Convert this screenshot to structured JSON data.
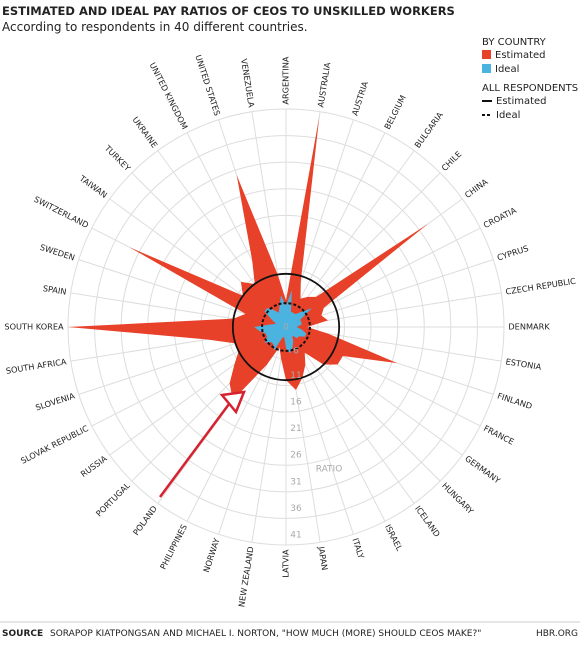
{
  "chart_data": {
    "type": "radar",
    "title": "ESTIMATED AND IDEAL PAY RATIOS OF CEOS TO UNSKILLED WORKERS",
    "subtitle": "According to respondents in 40 different countries.",
    "categories": [
      "ARGENTINA",
      "AUSTRALIA",
      "AUSTRIA",
      "BELGIUM",
      "BULGARIA",
      "CHILE",
      "CHINA",
      "CROATIA",
      "CYPRUS",
      "CZECH REPUBLIC",
      "DENMARK",
      "ESTONIA",
      "FINLAND",
      "FRANCE",
      "GERMANY",
      "HUNGARY",
      "ICELAND",
      "ISRAEL",
      "ITALY",
      "JAPAN",
      "LATVIA",
      "NEW ZEALAND",
      "NORWAY",
      "PHILIPPINES",
      "POLAND",
      "PORTUGAL",
      "RUSSIA",
      "SLOVAK REPUBLIC",
      "SLOVENIA",
      "SOUTH AFRICA",
      "SOUTH KOREA",
      "SPAIN",
      "SWEDEN",
      "SWITZERLAND",
      "TAIWAN",
      "TURKEY",
      "UKRAINE",
      "UNITED KINGDOM",
      "UNITED STATES",
      "VENEZUELA"
    ],
    "legend_title": "BY COUNTRY",
    "series": [
      {
        "name": "Estimated",
        "color": "#e8412a",
        "values": [
          5,
          40,
          9,
          6,
          7,
          8,
          33,
          8,
          7,
          8,
          4,
          8,
          22,
          12,
          12,
          10,
          6,
          8,
          10,
          12,
          10,
          6,
          4,
          8,
          17,
          15,
          12,
          10,
          10,
          15,
          41,
          10,
          8,
          33,
          10,
          12,
          10,
          14,
          30,
          10
        ]
      },
      {
        "name": "Ideal",
        "color": "#4ab3e0",
        "values": [
          4,
          7,
          3,
          3,
          3,
          4,
          6,
          3,
          3,
          3,
          2,
          3,
          4,
          4,
          3,
          3,
          2,
          3,
          4,
          5,
          4,
          2,
          2,
          5,
          4,
          4,
          5,
          4,
          4,
          5,
          6,
          3,
          2,
          3,
          5,
          5,
          4,
          3,
          4,
          6
        ]
      }
    ],
    "overall_title": "ALL RESPONDENTS",
    "overall": [
      {
        "name": "Estimated",
        "value": 10,
        "style": "solid"
      },
      {
        "name": "Ideal",
        "value": 4.5,
        "style": "dashed"
      }
    ],
    "axis_label": "RATIO",
    "ylim": [
      0,
      41
    ],
    "center_label": 0,
    "yticks": [
      6,
      11,
      16,
      21,
      26,
      31,
      36,
      41
    ],
    "source_label": "SOURCE",
    "source": "SORAPOP KIATPONGSAN AND MICHAEL I. NORTON, \"HOW MUCH (MORE) SHOULD CEOS MAKE?\"",
    "credit": "HBR.ORG"
  }
}
